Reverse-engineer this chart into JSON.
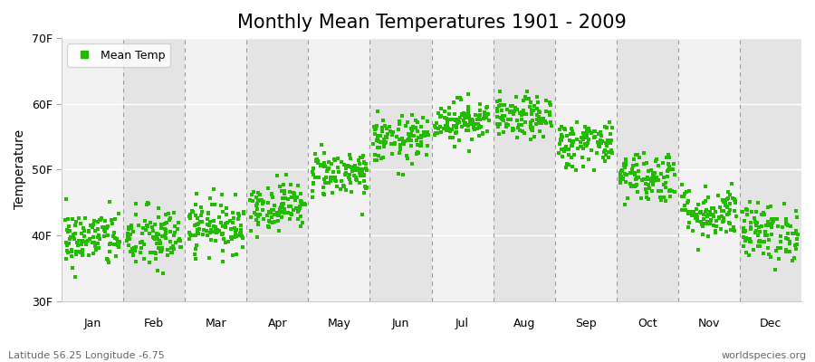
{
  "title": "Monthly Mean Temperatures 1901 - 2009",
  "ylabel": "Temperature",
  "ylim": [
    30,
    70
  ],
  "yticks": [
    30,
    40,
    50,
    60,
    70
  ],
  "ytick_labels": [
    "30F",
    "40F",
    "50F",
    "60F",
    "70F"
  ],
  "month_labels": [
    "Jan",
    "Feb",
    "Mar",
    "Apr",
    "May",
    "Jun",
    "Jul",
    "Aug",
    "Sep",
    "Oct",
    "Nov",
    "Dec"
  ],
  "legend_label": "Mean Temp",
  "marker_color": "#22bb00",
  "bg_color": "#ebebeb",
  "band_color_light": "#f2f2f2",
  "band_color_dark": "#e4e4e4",
  "hgrid_color": "#ffffff",
  "dashed_line_color": "#999999",
  "subtitle_left": "Latitude 56.25 Longitude -6.75",
  "subtitle_right": "worldspecies.org",
  "mean_temps_F": [
    39.5,
    39.5,
    41.5,
    44.5,
    49.5,
    54.5,
    57.5,
    57.8,
    54.0,
    49.0,
    43.5,
    40.5
  ],
  "std_temps_F": [
    2.2,
    2.5,
    2.0,
    1.8,
    1.8,
    1.8,
    1.6,
    1.6,
    1.8,
    2.0,
    2.0,
    2.2
  ],
  "n_years": 109,
  "figsize": [
    9.0,
    4.0
  ],
  "dpi": 100,
  "title_fontsize": 15
}
